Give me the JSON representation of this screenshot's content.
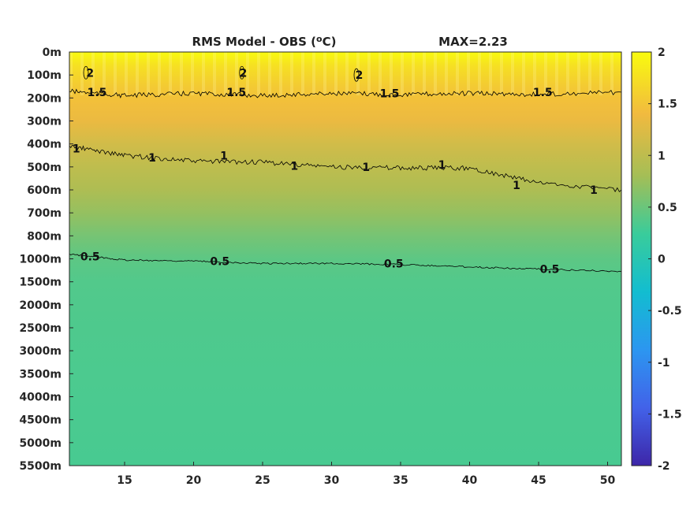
{
  "chart_data": {
    "type": "heatmap",
    "title": "RMS Model - OBS (",
    "title_sup": "o",
    "title_end": "C)",
    "max_label": "MAX=2.23",
    "xlabel": "",
    "ylabel": "",
    "xlim": [
      11,
      51
    ],
    "x_ticks": [
      15,
      20,
      25,
      30,
      35,
      40,
      45,
      50
    ],
    "y_labels": [
      "0m",
      "100m",
      "200m",
      "300m",
      "400m",
      "500m",
      "600m",
      "700m",
      "800m",
      "1000m",
      "1500m",
      "2000m",
      "2500m",
      "3000m",
      "3500m",
      "4000m",
      "4500m",
      "5000m",
      "5500m"
    ],
    "colorbar": {
      "ticks": [
        "2",
        "1.5",
        "1",
        "0.5",
        "0",
        "-0.5",
        "-1",
        "-1.5",
        "-2"
      ],
      "range": [
        -2,
        2
      ],
      "colors": [
        "#3d26a8",
        "#4262e9",
        "#2c96f0",
        "#12bdd0",
        "#39cc9b",
        "#a4be56",
        "#f1ba3f",
        "#f9fb0e"
      ]
    },
    "field": {
      "depth_index": [
        0,
        0.6,
        1.5,
        2.2,
        3,
        4,
        5,
        6,
        7,
        8,
        9,
        10,
        12,
        14,
        16,
        18
      ],
      "values": [
        2.05,
        1.75,
        1.55,
        1.45,
        1.35,
        1.15,
        1.0,
        0.88,
        0.72,
        0.56,
        0.43,
        0.37,
        0.35,
        0.34,
        0.33,
        0.32
      ]
    },
    "contours": [
      {
        "level": "2",
        "x": [
          12.2,
          23.5,
          31.8
        ],
        "depth_index": [
          0.9,
          0.9,
          1.0
        ]
      },
      {
        "level": "1.5",
        "x": [
          11,
          15,
          20,
          25,
          30,
          35,
          40,
          45,
          51
        ],
        "depth_index": [
          1.7,
          1.9,
          1.8,
          1.9,
          1.8,
          1.85,
          1.8,
          1.85,
          1.75
        ]
      },
      {
        "level": "1",
        "x": [
          11,
          15,
          20,
          25,
          30,
          35,
          40,
          45,
          51
        ],
        "depth_index": [
          4.1,
          4.5,
          4.75,
          4.8,
          5.0,
          5.05,
          5.05,
          5.7,
          6.0
        ]
      },
      {
        "level": "0.5",
        "x": [
          11,
          15,
          20,
          25,
          30,
          35,
          40,
          45,
          51
        ],
        "depth_index": [
          8.8,
          9.05,
          9.1,
          9.2,
          9.2,
          9.25,
          9.35,
          9.45,
          9.55
        ]
      }
    ],
    "contour_labels": [
      {
        "text": "1.5",
        "x": 13,
        "depth_index": 1.75
      },
      {
        "text": "1.5",
        "x": 23.1,
        "depth_index": 1.75
      },
      {
        "text": "1.5",
        "x": 34.2,
        "depth_index": 1.8
      },
      {
        "text": "1.5",
        "x": 45.3,
        "depth_index": 1.75
      },
      {
        "text": "1",
        "x": 11.5,
        "depth_index": 4.2
      },
      {
        "text": "1",
        "x": 17,
        "depth_index": 4.6
      },
      {
        "text": "1",
        "x": 22.2,
        "depth_index": 4.5
      },
      {
        "text": "1",
        "x": 27.3,
        "depth_index": 4.95
      },
      {
        "text": "1",
        "x": 32.5,
        "depth_index": 5.0
      },
      {
        "text": "1",
        "x": 38,
        "depth_index": 4.9
      },
      {
        "text": "1",
        "x": 43.4,
        "depth_index": 5.8
      },
      {
        "text": "1",
        "x": 49,
        "depth_index": 6.0
      },
      {
        "text": "0.5",
        "x": 12.5,
        "depth_index": 8.9
      },
      {
        "text": "0.5",
        "x": 21.9,
        "depth_index": 9.1
      },
      {
        "text": "0.5",
        "x": 34.5,
        "depth_index": 9.2
      },
      {
        "text": "0.5",
        "x": 45.8,
        "depth_index": 9.45
      },
      {
        "text": "2",
        "x": 12.5,
        "depth_index": 0.9
      },
      {
        "text": "2",
        "x": 23.6,
        "depth_index": 0.9
      },
      {
        "text": "2",
        "x": 32,
        "depth_index": 1.0
      }
    ]
  }
}
